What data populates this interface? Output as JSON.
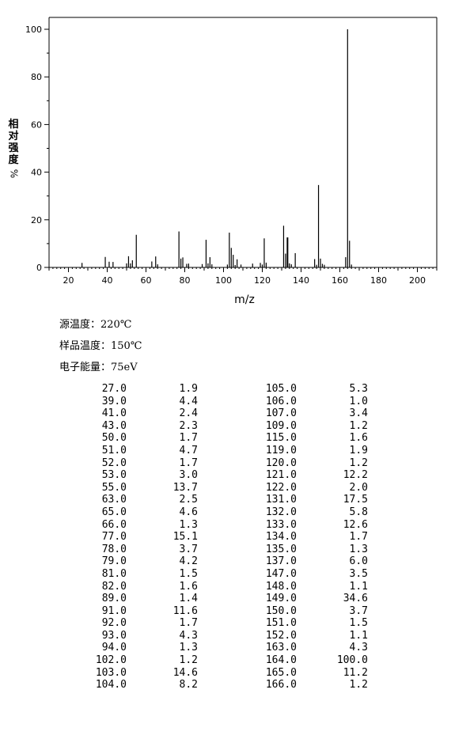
{
  "chart_data": {
    "type": "bar",
    "xlabel": "m/z",
    "ylabel": "相对强度",
    "ylabel_unit": "%",
    "xlim": [
      10,
      210
    ],
    "ylim": [
      0,
      105
    ],
    "x_ticks": [
      20,
      40,
      60,
      80,
      100,
      120,
      140,
      160,
      180,
      200
    ],
    "y_ticks": [
      0,
      20,
      40,
      60,
      80,
      100
    ],
    "x": [
      27,
      39,
      41,
      43,
      50,
      51,
      52,
      53,
      55,
      63,
      65,
      66,
      77,
      78,
      79,
      81,
      82,
      89,
      91,
      92,
      93,
      94,
      102,
      103,
      104,
      105,
      106,
      107,
      109,
      115,
      119,
      120,
      121,
      122,
      131,
      132,
      133,
      134,
      135,
      137,
      147,
      148,
      149,
      150,
      151,
      152,
      163,
      164,
      165,
      166
    ],
    "values": [
      1.9,
      4.4,
      2.4,
      2.3,
      1.7,
      4.7,
      1.7,
      3.0,
      13.7,
      2.5,
      4.6,
      1.3,
      15.1,
      3.7,
      4.2,
      1.5,
      1.6,
      1.4,
      11.6,
      1.7,
      4.3,
      1.3,
      1.2,
      14.6,
      8.2,
      5.3,
      1.0,
      3.4,
      1.2,
      1.6,
      1.9,
      1.2,
      12.2,
      2.0,
      17.5,
      5.8,
      12.6,
      1.7,
      1.3,
      6.0,
      3.5,
      1.1,
      34.6,
      3.7,
      1.5,
      1.1,
      4.3,
      100.0,
      11.2,
      1.2
    ]
  },
  "conditions": {
    "source_temp": "源温度：220℃",
    "sample_temp": "样品温度：150℃",
    "electron_energy": "电子能量：75eV"
  },
  "peaks_table": [
    [
      "27.0",
      "1.9",
      "105.0",
      "5.3"
    ],
    [
      "39.0",
      "4.4",
      "106.0",
      "1.0"
    ],
    [
      "41.0",
      "2.4",
      "107.0",
      "3.4"
    ],
    [
      "43.0",
      "2.3",
      "109.0",
      "1.2"
    ],
    [
      "50.0",
      "1.7",
      "115.0",
      "1.6"
    ],
    [
      "51.0",
      "4.7",
      "119.0",
      "1.9"
    ],
    [
      "52.0",
      "1.7",
      "120.0",
      "1.2"
    ],
    [
      "53.0",
      "3.0",
      "121.0",
      "12.2"
    ],
    [
      "55.0",
      "13.7",
      "122.0",
      "2.0"
    ],
    [
      "63.0",
      "2.5",
      "131.0",
      "17.5"
    ],
    [
      "65.0",
      "4.6",
      "132.0",
      "5.8"
    ],
    [
      "66.0",
      "1.3",
      "133.0",
      "12.6"
    ],
    [
      "77.0",
      "15.1",
      "134.0",
      "1.7"
    ],
    [
      "78.0",
      "3.7",
      "135.0",
      "1.3"
    ],
    [
      "79.0",
      "4.2",
      "137.0",
      "6.0"
    ],
    [
      "81.0",
      "1.5",
      "147.0",
      "3.5"
    ],
    [
      "82.0",
      "1.6",
      "148.0",
      "1.1"
    ],
    [
      "89.0",
      "1.4",
      "149.0",
      "34.6"
    ],
    [
      "91.0",
      "11.6",
      "150.0",
      "3.7"
    ],
    [
      "92.0",
      "1.7",
      "151.0",
      "1.5"
    ],
    [
      "93.0",
      "4.3",
      "152.0",
      "1.1"
    ],
    [
      "94.0",
      "1.3",
      "163.0",
      "4.3"
    ],
    [
      "102.0",
      "1.2",
      "164.0",
      "100.0"
    ],
    [
      "103.0",
      "14.6",
      "165.0",
      "11.2"
    ],
    [
      "104.0",
      "8.2",
      "166.0",
      "1.2"
    ]
  ]
}
